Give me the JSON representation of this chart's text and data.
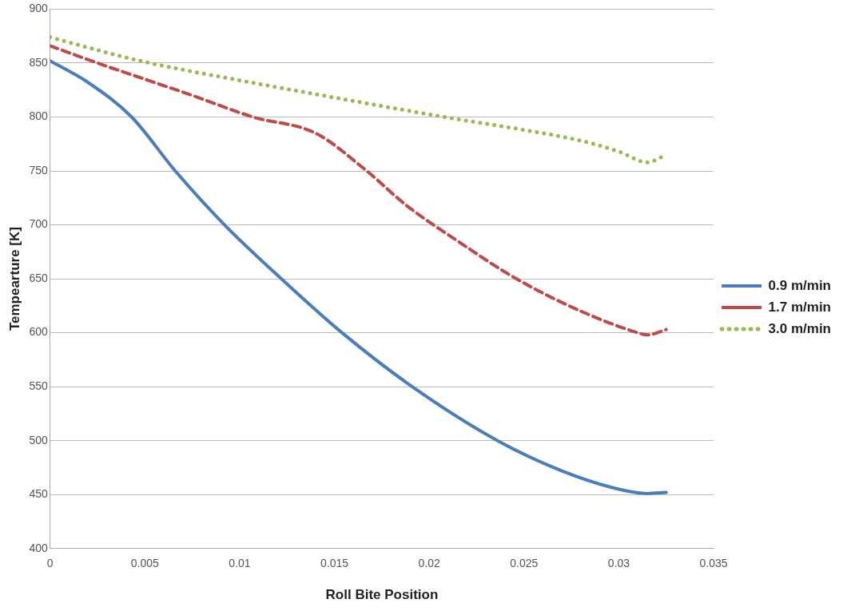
{
  "chart_data": {
    "type": "line",
    "xlabel": "Roll Bite Position",
    "ylabel": "Tempearture [K]",
    "xlim": [
      0,
      0.035
    ],
    "xticks": [
      0,
      0.005,
      0.01,
      0.015,
      0.02,
      0.025,
      0.03,
      0.035
    ],
    "ylim": [
      400,
      900
    ],
    "yticks": [
      400,
      450,
      500,
      550,
      600,
      650,
      700,
      750,
      800,
      850,
      900
    ],
    "grid": "y",
    "legend": "right",
    "marker": "none",
    "series": [
      {
        "name": "0.9 m/min",
        "color": "#4a7ebb",
        "line_style": "solid",
        "x": [
          0,
          0.002,
          0.0043,
          0.0066,
          0.0092,
          0.0122,
          0.0154,
          0.0191,
          0.0236,
          0.027,
          0.03,
          0.0315,
          0.0325
        ],
        "values": [
          852,
          832,
          800,
          750,
          700,
          650,
          600,
          550,
          500,
          472,
          455,
          451,
          452
        ]
      },
      {
        "name": "1.7 m/min",
        "color": "#be4b48",
        "line_style": "dashed",
        "x": [
          0,
          0.0025,
          0.005,
          0.0075,
          0.0107,
          0.014,
          0.0167,
          0.0188,
          0.0215,
          0.0246,
          0.028,
          0.031,
          0.0315,
          0.0325
        ],
        "values": [
          866,
          850,
          835,
          820,
          800,
          785,
          750,
          718,
          685,
          650,
          620,
          600,
          598,
          603
        ]
      },
      {
        "name": "3.0 m/min",
        "color": "#98b954",
        "line_style": "dotted",
        "x": [
          0,
          0.0025,
          0.005,
          0.01,
          0.015,
          0.0208,
          0.025,
          0.028,
          0.03,
          0.0315,
          0.0325
        ],
        "values": [
          874,
          862,
          851,
          834,
          818,
          800,
          788,
          778,
          768,
          758,
          765
        ]
      }
    ]
  }
}
